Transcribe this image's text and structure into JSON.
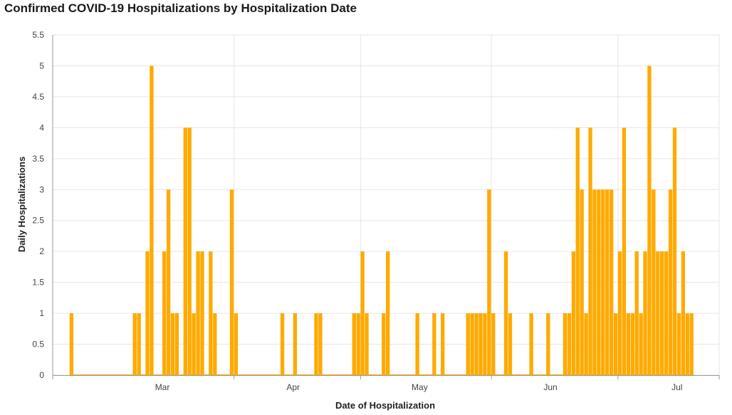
{
  "chart_data": {
    "type": "bar",
    "title": "Confirmed COVID-19 Hospitalizations by Hospitalization Date",
    "xlabel": "Date of Hospitalization",
    "ylabel": "Daily Hospitalizations",
    "ylim": [
      0,
      5.5
    ],
    "yticks": [
      "0",
      "0.5",
      "1",
      "1.5",
      "2",
      "2.5",
      "3",
      "3.5",
      "4",
      "4.5",
      "5",
      "5.5"
    ],
    "x_range": [
      "2020-02-18",
      "2020-07-25"
    ],
    "month_ticks": [
      {
        "label": "Mar",
        "date": "2020-03-15"
      },
      {
        "label": "Apr",
        "date": "2020-04-15"
      },
      {
        "label": "May",
        "date": "2020-05-15"
      },
      {
        "label": "Jun",
        "date": "2020-06-15"
      },
      {
        "label": "Jul",
        "date": "2020-07-15"
      }
    ],
    "month_boundaries": [
      "2020-03-31",
      "2020-04-30",
      "2020-05-31",
      "2020-06-30"
    ],
    "grid": true,
    "bar_color": "#FFAA00",
    "series": [
      {
        "values": [
          [
            "2020-02-22",
            1
          ],
          [
            "2020-03-08",
            1
          ],
          [
            "2020-03-09",
            1
          ],
          [
            "2020-03-11",
            2
          ],
          [
            "2020-03-12",
            5
          ],
          [
            "2020-03-15",
            2
          ],
          [
            "2020-03-16",
            3
          ],
          [
            "2020-03-17",
            1
          ],
          [
            "2020-03-18",
            1
          ],
          [
            "2020-03-20",
            4
          ],
          [
            "2020-03-21",
            4
          ],
          [
            "2020-03-22",
            1
          ],
          [
            "2020-03-23",
            2
          ],
          [
            "2020-03-24",
            2
          ],
          [
            "2020-03-26",
            2
          ],
          [
            "2020-03-27",
            1
          ],
          [
            "2020-03-31",
            3
          ],
          [
            "2020-04-01",
            1
          ],
          [
            "2020-04-12",
            1
          ],
          [
            "2020-04-15",
            1
          ],
          [
            "2020-04-20",
            1
          ],
          [
            "2020-04-21",
            1
          ],
          [
            "2020-04-29",
            1
          ],
          [
            "2020-04-30",
            1
          ],
          [
            "2020-05-01",
            2
          ],
          [
            "2020-05-02",
            1
          ],
          [
            "2020-05-06",
            1
          ],
          [
            "2020-05-07",
            2
          ],
          [
            "2020-05-14",
            1
          ],
          [
            "2020-05-18",
            1
          ],
          [
            "2020-05-20",
            1
          ],
          [
            "2020-05-26",
            1
          ],
          [
            "2020-05-27",
            1
          ],
          [
            "2020-05-28",
            1
          ],
          [
            "2020-05-29",
            1
          ],
          [
            "2020-05-30",
            1
          ],
          [
            "2020-05-31",
            3
          ],
          [
            "2020-06-01",
            1
          ],
          [
            "2020-06-04",
            2
          ],
          [
            "2020-06-05",
            1
          ],
          [
            "2020-06-10",
            1
          ],
          [
            "2020-06-14",
            1
          ],
          [
            "2020-06-18",
            1
          ],
          [
            "2020-06-19",
            1
          ],
          [
            "2020-06-20",
            2
          ],
          [
            "2020-06-21",
            4
          ],
          [
            "2020-06-22",
            3
          ],
          [
            "2020-06-23",
            1
          ],
          [
            "2020-06-24",
            4
          ],
          [
            "2020-06-25",
            3
          ],
          [
            "2020-06-26",
            3
          ],
          [
            "2020-06-27",
            3
          ],
          [
            "2020-06-28",
            3
          ],
          [
            "2020-06-29",
            3
          ],
          [
            "2020-06-30",
            1
          ],
          [
            "2020-07-01",
            2
          ],
          [
            "2020-07-02",
            4
          ],
          [
            "2020-07-03",
            1
          ],
          [
            "2020-07-04",
            1
          ],
          [
            "2020-07-05",
            2
          ],
          [
            "2020-07-06",
            1
          ],
          [
            "2020-07-07",
            2
          ],
          [
            "2020-07-08",
            5
          ],
          [
            "2020-07-09",
            3
          ],
          [
            "2020-07-10",
            2
          ],
          [
            "2020-07-11",
            2
          ],
          [
            "2020-07-12",
            2
          ],
          [
            "2020-07-13",
            3
          ],
          [
            "2020-07-14",
            4
          ],
          [
            "2020-07-15",
            1
          ],
          [
            "2020-07-16",
            2
          ],
          [
            "2020-07-17",
            1
          ],
          [
            "2020-07-18",
            1
          ]
        ]
      }
    ]
  }
}
